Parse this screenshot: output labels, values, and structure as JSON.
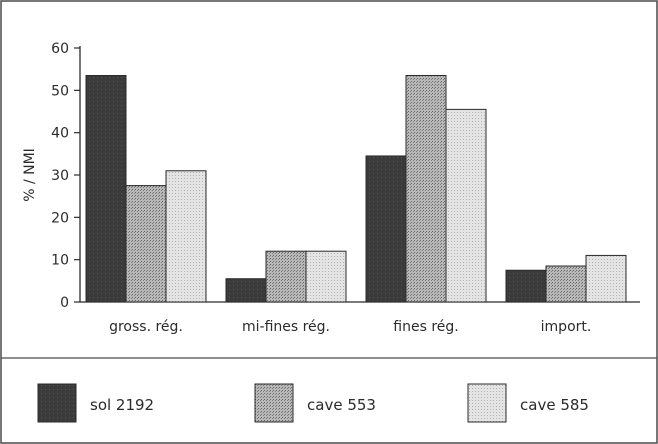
{
  "chart_data": {
    "type": "bar",
    "title": "",
    "xlabel": "",
    "ylabel": "% / NMI",
    "ylim": [
      0,
      60
    ],
    "yticks": [
      0,
      10,
      20,
      30,
      40,
      50,
      60
    ],
    "grid": false,
    "legend_position": "bottom",
    "categories": [
      "gross. rég.",
      "mi-fines rég.",
      "fines rég.",
      "import."
    ],
    "series": [
      {
        "name": "sol 2192",
        "values": [
          53.5,
          5.5,
          34.5,
          7.5
        ],
        "color": "#3a3a3a",
        "pattern": "solid-dark"
      },
      {
        "name": "cave 553",
        "values": [
          27.5,
          12,
          53.5,
          8.5
        ],
        "color": "#9a9a9a",
        "pattern": "stipple-medium"
      },
      {
        "name": "cave 585",
        "values": [
          31,
          12,
          45.5,
          11
        ],
        "color": "#d2d2d2",
        "pattern": "stipple-light"
      }
    ]
  }
}
